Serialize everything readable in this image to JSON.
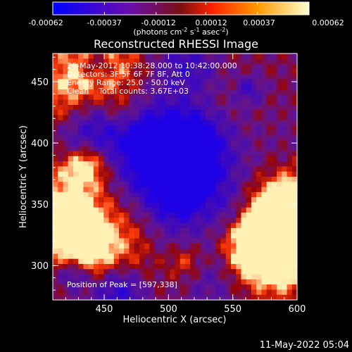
{
  "colorbar": {
    "ticks": [
      "-0.00062",
      "-0.00037",
      "-0.00012",
      "0.00012",
      "0.00037",
      "0.00062"
    ],
    "tick_values": [
      -0.00062,
      -0.00037,
      -0.00012,
      0.00012,
      0.00037,
      0.00062
    ],
    "unit_prefix": "(photons cm",
    "unit_exp1": "-2",
    "unit_mid": " s",
    "unit_exp2": "-1",
    "unit_mid2": " asec",
    "unit_exp3": "-2",
    "unit_suffix": ")",
    "colors": [
      "#0000ff",
      "#6a0dad",
      "#ff2000",
      "#ff8c00",
      "#ffffc0"
    ]
  },
  "chart_data": {
    "type": "heatmap",
    "title": "Reconstructed RHESSI Image",
    "xlabel": "Heliocentric X (arcsec)",
    "ylabel": "Heliocentric Y (arcsec)",
    "xlim": [
      410,
      600
    ],
    "ylim": [
      272,
      473
    ],
    "xticks": [
      450,
      500,
      550,
      600
    ],
    "yticks": [
      300,
      350,
      400,
      450
    ],
    "annotations": [
      "26-May-2012 10:38:28.000 to 10:42:00.000",
      "Detectors: 3F 5F 6F 7F 8F, Att 0",
      "Energy Range: 25.0 - 50.0 keV",
      "Clean    Total counts: 3.67E+03"
    ],
    "peak_label": "Position of Peak = [597,338]",
    "peak": [
      597,
      338
    ],
    "zlim": [
      -0.00062,
      0.00062
    ]
  },
  "timestamp": "11-May-2022 05:04"
}
